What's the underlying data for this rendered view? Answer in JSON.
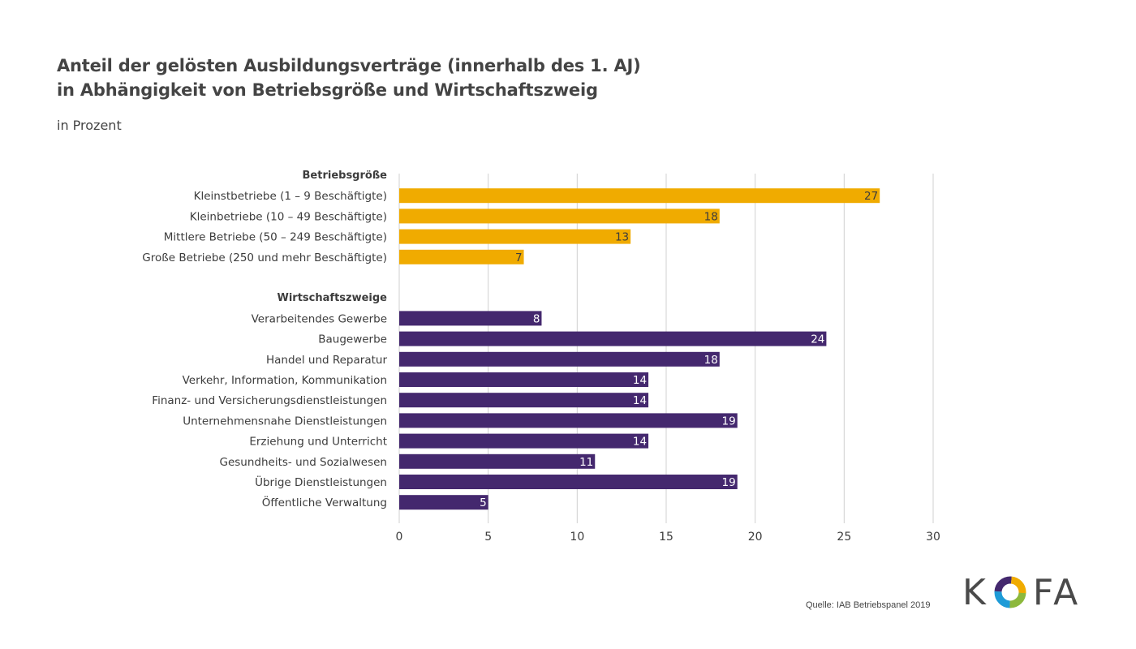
{
  "header": {
    "title_line1": "Anteil der gelösten Ausbildungsverträge (innerhalb des 1. AJ)",
    "title_line2": "in Abhängigkeit von Betriebsgröße und Wirtschaftszweig",
    "subtitle": "in Prozent"
  },
  "footer": {
    "source": "Quelle: IAB Betriebspanel 2019",
    "logo_text": "KOFA"
  },
  "colors": {
    "group1": "#f0ab00",
    "group2": "#44286e",
    "grid": "#d0d0d0",
    "text": "#3c3c3c"
  },
  "chart_data": {
    "type": "bar",
    "orientation": "horizontal",
    "xlim": [
      0,
      30
    ],
    "xticks": [
      0,
      5,
      10,
      15,
      20,
      25,
      30
    ],
    "grid": true,
    "groups": [
      {
        "name": "Betriebsgröße",
        "color": "#f0ab00",
        "categories": [
          "Kleinstbetriebe (1 – 9 Beschäftigte)",
          "Kleinbetriebe (10 – 49 Beschäftigte)",
          "Mittlere Betriebe (50 – 249 Beschäftigte)",
          "Große Betriebe (250 und mehr Beschäftigte)"
        ],
        "values": [
          27,
          18,
          13,
          7
        ]
      },
      {
        "name": "Wirtschaftszweige",
        "color": "#44286e",
        "categories": [
          "Verarbeitendes Gewerbe",
          "Baugewerbe",
          "Handel und Reparatur",
          "Verkehr, Information, Kommunikation",
          "Finanz- und Versicherungsdienstleistungen",
          "Unternehmensnahe Dienstleistungen",
          "Erziehung und Unterricht",
          "Gesundheits- und Sozialwesen",
          "Übrige Dienstleistungen",
          "Öffentliche Verwaltung"
        ],
        "values": [
          8,
          24,
          18,
          14,
          14,
          19,
          14,
          11,
          19,
          5
        ]
      }
    ]
  }
}
